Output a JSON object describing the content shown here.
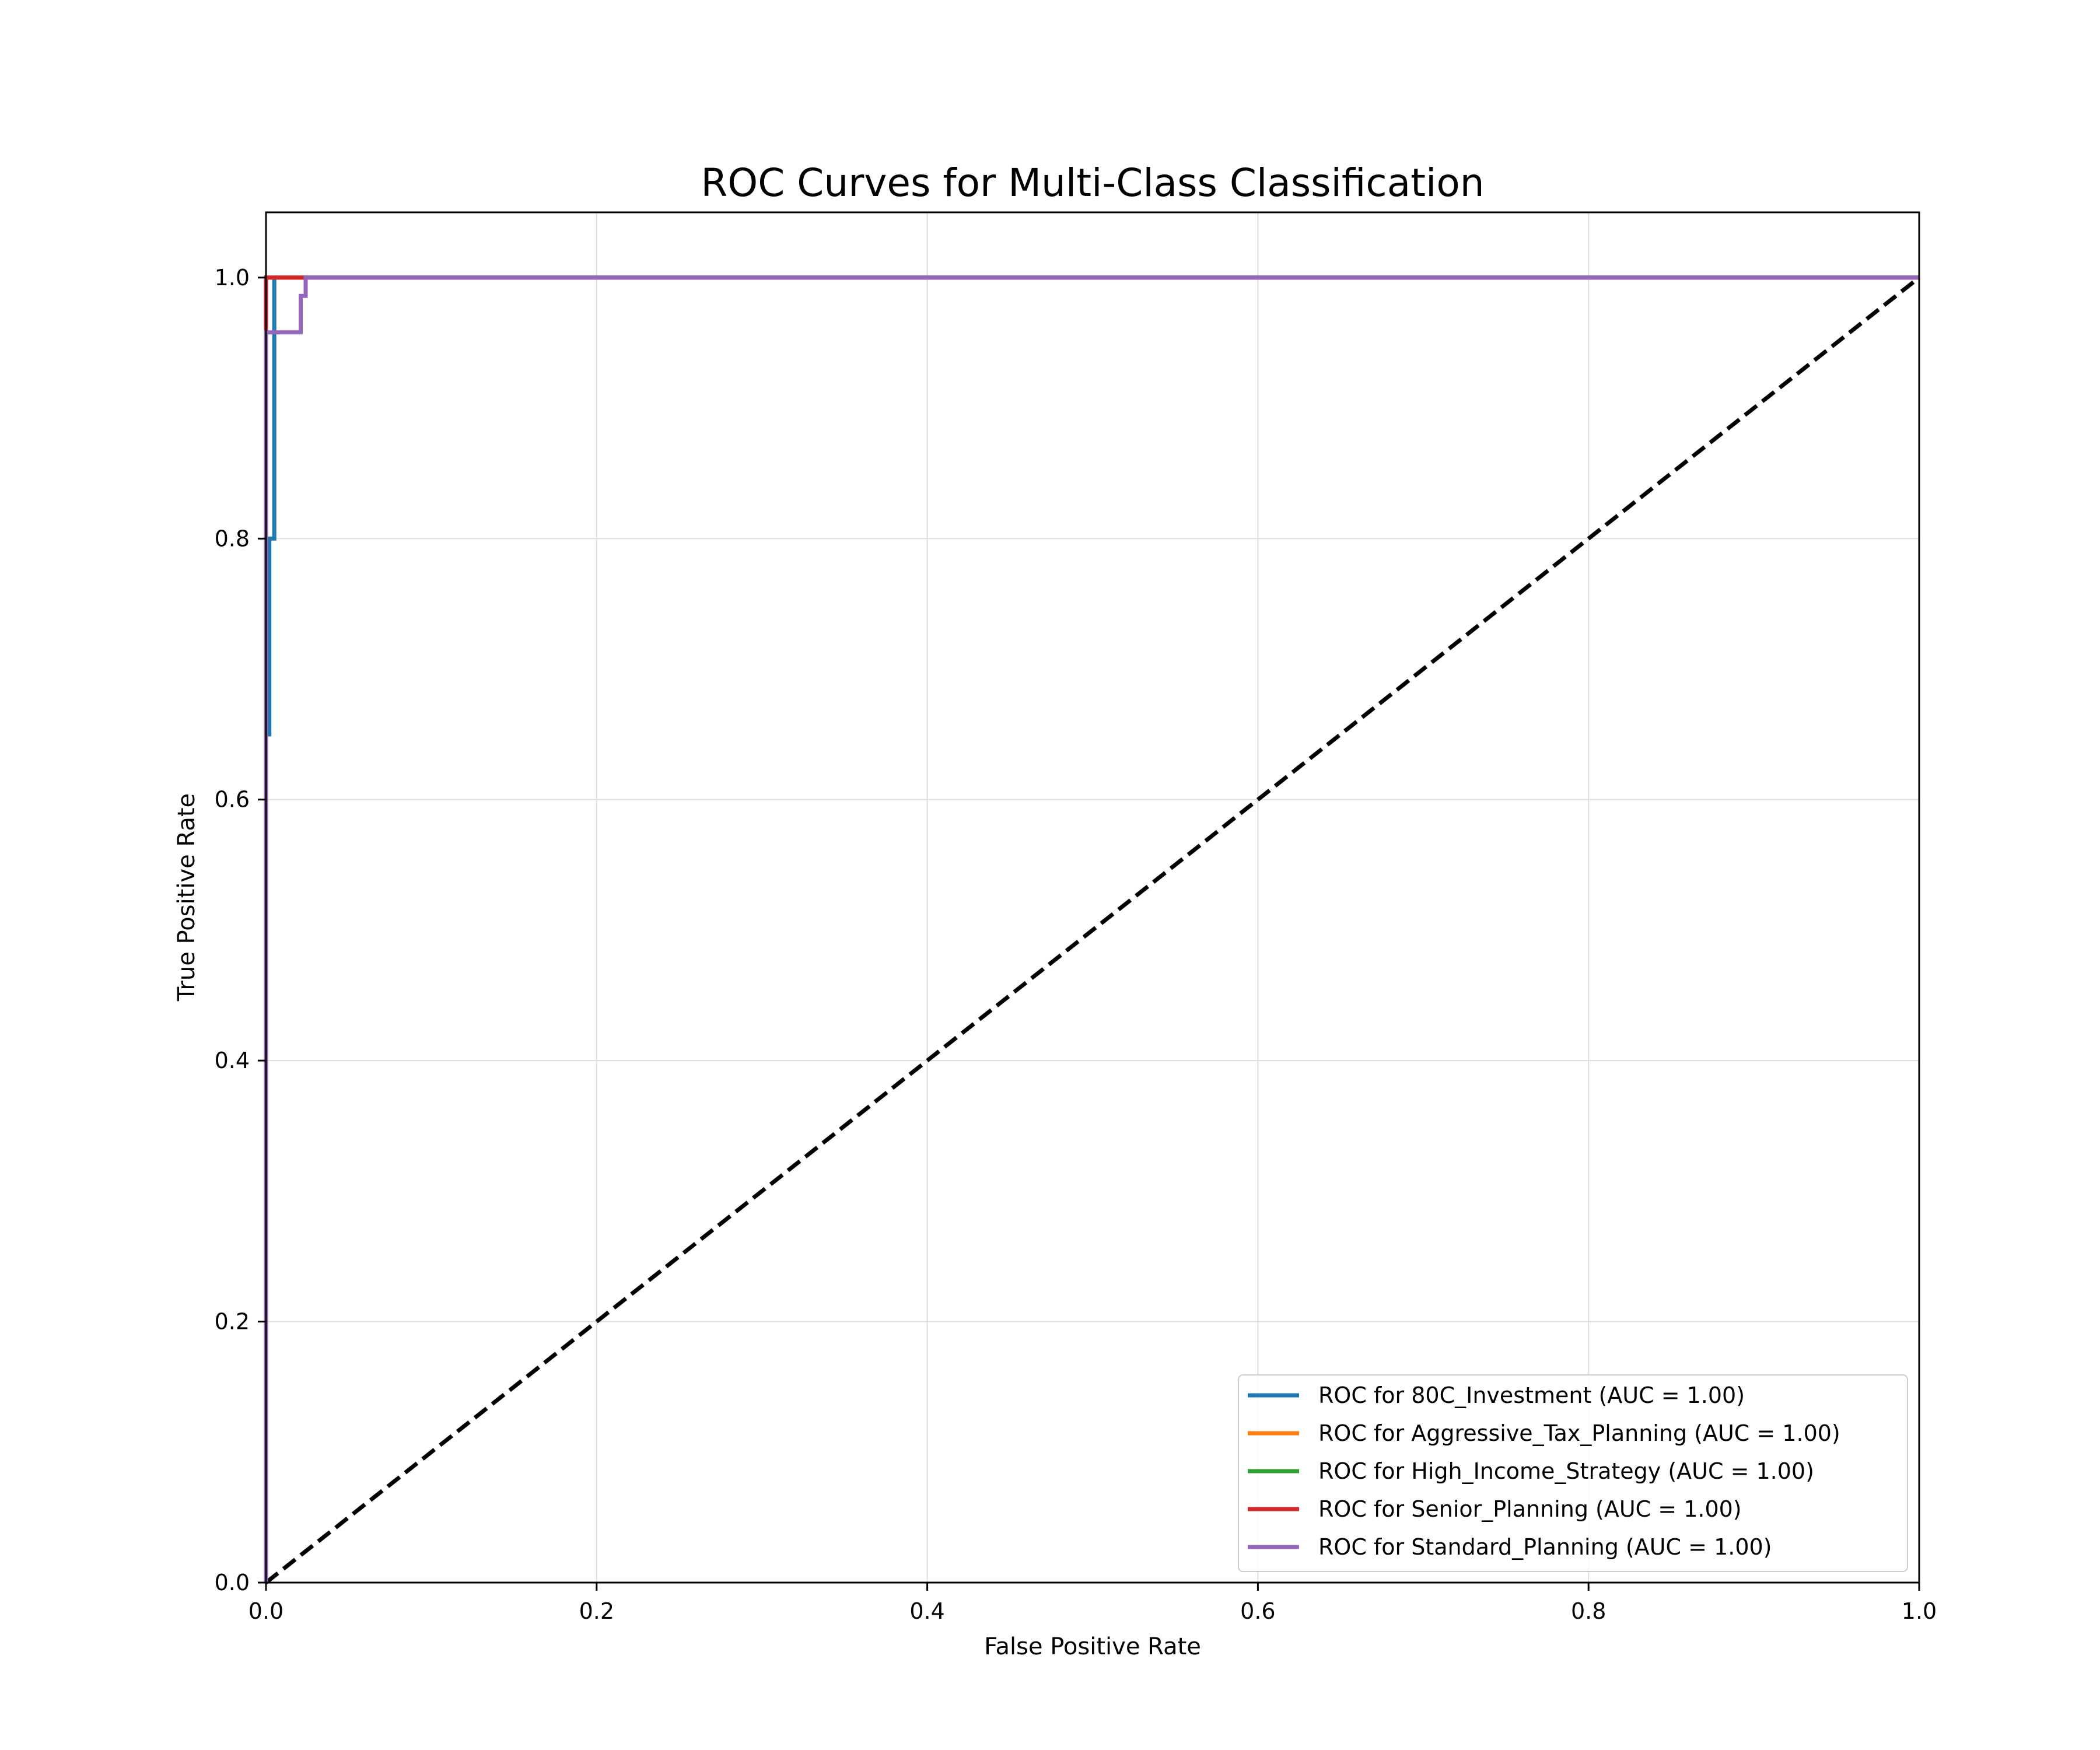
{
  "chart_data": {
    "type": "line",
    "title": "ROC Curves for Multi-Class Classification",
    "xlabel": "False Positive Rate",
    "ylabel": "True Positive Rate",
    "xlim": [
      0.0,
      1.0
    ],
    "ylim": [
      0.0,
      1.05
    ],
    "xticks": [
      0.0,
      0.2,
      0.4,
      0.6,
      0.8,
      1.0
    ],
    "yticks": [
      0.0,
      0.2,
      0.4,
      0.6,
      0.8,
      1.0
    ],
    "xtick_labels": [
      "0.0",
      "0.2",
      "0.4",
      "0.6",
      "0.8",
      "1.0"
    ],
    "ytick_labels": [
      "0.0",
      "0.2",
      "0.4",
      "0.6",
      "0.8",
      "1.0"
    ],
    "grid": true,
    "legend_position": "lower-right",
    "series": [
      {
        "name": "ROC for 80C_Investment (AUC = 1.00)",
        "color": "#1f77b4",
        "x": [
          0.0,
          0.0,
          0.002,
          0.002,
          0.005,
          0.005,
          1.0
        ],
        "y": [
          0.0,
          0.65,
          0.65,
          0.8,
          0.8,
          1.0,
          1.0
        ]
      },
      {
        "name": "ROC for Aggressive_Tax_Planning (AUC = 1.00)",
        "color": "#ff7f0e",
        "x": [
          0.0,
          0.0,
          1.0
        ],
        "y": [
          0.0,
          1.0,
          1.0
        ]
      },
      {
        "name": "ROC for High_Income_Strategy (AUC = 1.00)",
        "color": "#2ca02c",
        "x": [
          0.0,
          0.0,
          1.0
        ],
        "y": [
          0.0,
          1.0,
          1.0
        ]
      },
      {
        "name": "ROC for Senior_Planning (AUC = 1.00)",
        "color": "#d62728",
        "x": [
          0.0,
          0.0,
          1.0
        ],
        "y": [
          0.0,
          1.0,
          1.0
        ]
      },
      {
        "name": "ROC for Standard_Planning (AUC = 1.00)",
        "color": "#9467bd",
        "x": [
          0.0,
          0.0,
          0.021,
          0.021,
          0.024,
          0.024,
          1.0
        ],
        "y": [
          0.0,
          0.958,
          0.958,
          0.986,
          0.986,
          1.0,
          1.0
        ]
      }
    ],
    "reference_line": {
      "x": [
        0.0,
        1.0
      ],
      "y": [
        0.0,
        1.0
      ],
      "color": "#000000",
      "style": "dashed"
    }
  }
}
